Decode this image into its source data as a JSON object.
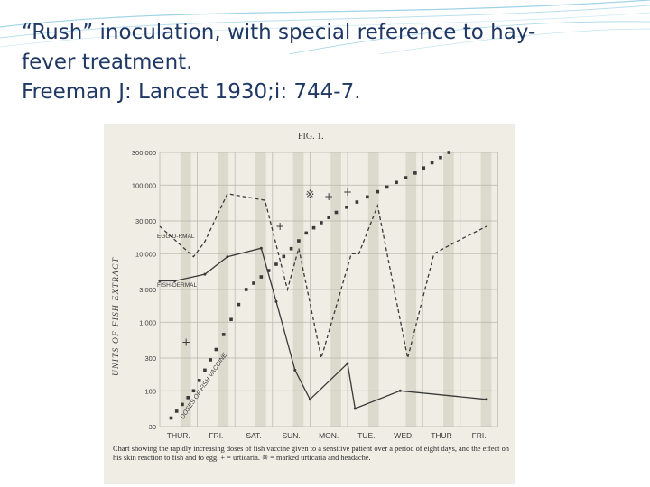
{
  "slide": {
    "title_lines": [
      "“Rush” inoculation, with special reference to hay-",
      "fever treatment.",
      "Freeman J: Lancet 1930;i: 744-7."
    ]
  },
  "figure": {
    "fig_label": "FIG. 1.",
    "y_axis_title": "UNITS OF FISH EXTRACT",
    "y_ticks": [
      "300,000",
      "100,000",
      "30,000",
      "10,000",
      "3,000",
      "1,000",
      "300",
      "100",
      "30"
    ],
    "day_labels": [
      "THUR.",
      "FRI.",
      "SAT.",
      "SUN.",
      "MON.",
      "TUE.",
      "WED.",
      "THUR",
      "FRI."
    ],
    "series_labels": {
      "egg": "EGG-D-RMAL",
      "fish": "FISH-DERMAL",
      "doses": "DOSES OF FISH VACCINE"
    },
    "marker_plus": "+",
    "marker_star": "※",
    "caption": "Chart showing the rapidly increasing doses of fish vaccine given to a sensitive patient over a period of eight days, and the effect on his skin reaction to fish and to egg. + = urticaria. ※ = marked urticaria and headache.",
    "colors": {
      "ink": "#3a3a3a",
      "paper": "#efede4",
      "title": "#1f3864"
    }
  },
  "chart_data": {
    "type": "line",
    "x_categories": [
      "THUR.",
      "FRI.",
      "SAT.",
      "SUN.",
      "MON.",
      "TUE.",
      "WED.",
      "THUR",
      "FRI."
    ],
    "y_scale": "log",
    "ylim": [
      30,
      300000
    ],
    "ylabel": "UNITS OF FISH EXTRACT",
    "grid": true,
    "series": [
      {
        "name": "EGG-D-RMAL",
        "style": "dashed",
        "x": [
          0,
          0.9,
          1.2,
          1.8,
          2.8,
          3.4,
          3.7,
          4.3,
          5.1,
          5.3,
          5.8,
          6.6,
          7.3,
          7.9,
          8.7
        ],
        "y": [
          25000,
          9000,
          15000,
          75000,
          60000,
          3000,
          12000,
          300,
          10000,
          10000,
          50000,
          300,
          10000,
          15000,
          25000
        ]
      },
      {
        "name": "FISH-DERMAL",
        "style": "solid",
        "x": [
          0,
          0.4,
          1.2,
          1.8,
          2.7,
          3.1,
          3.6,
          4.0,
          5.0,
          5.2,
          6.4,
          8.7
        ],
        "y": [
          4000,
          4000,
          5000,
          9000,
          12000,
          2000,
          200,
          75,
          250,
          55,
          100,
          75
        ]
      },
      {
        "name": "DOSES OF FISH VACCINE",
        "style": "squares",
        "x": [
          0.3,
          0.9,
          1.5,
          2.3,
          3.1,
          3.9,
          4.7,
          5.8,
          6.8,
          7.7
        ],
        "y": [
          40,
          100,
          400,
          3000,
          7000,
          20000,
          40000,
          80000,
          150000,
          300000
        ]
      }
    ],
    "annotations": [
      {
        "text": "※",
        "x": 4.0,
        "y": 65000
      },
      {
        "text": "+",
        "x": 4.5,
        "y": 60000
      },
      {
        "text": "+",
        "x": 5.0,
        "y": 70000
      },
      {
        "text": "+",
        "x": 3.2,
        "y": 22000
      },
      {
        "text": "+",
        "x": 0.7,
        "y": 450
      }
    ]
  }
}
